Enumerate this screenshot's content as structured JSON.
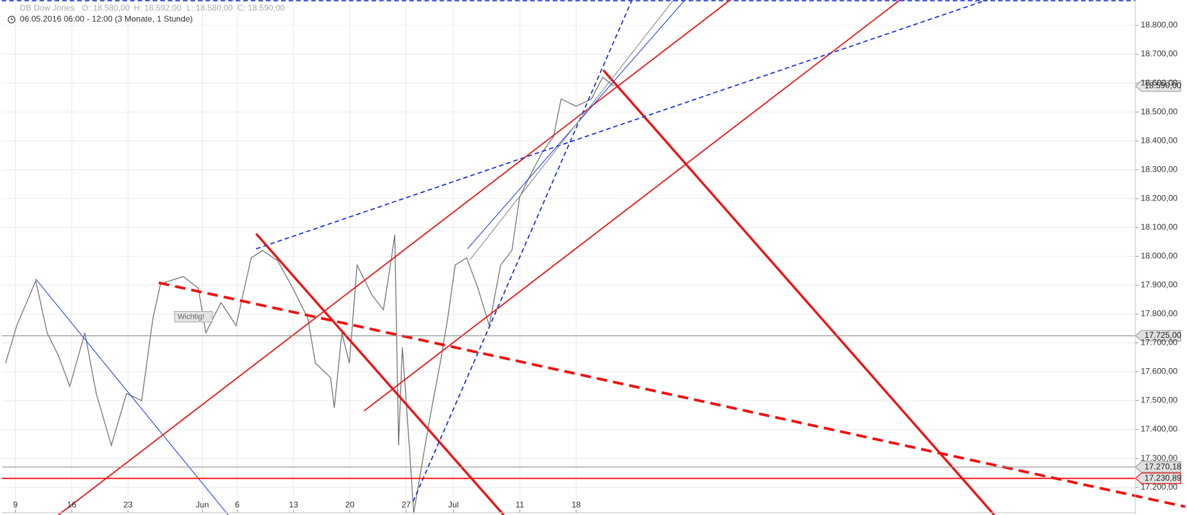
{
  "header": {
    "instrument": "DB Dow Jones",
    "open": "O: 18.580,00",
    "high": "H: 18.592,00",
    "low": "L: 18.580,00",
    "close": "C: 18.590,00",
    "period": "06.05.2016 06:00 - 12:00 (3 Monate, 1 Stunde)"
  },
  "chart_data": {
    "type": "line",
    "annotation": "Wichtig!",
    "x": [
      0.13,
      1.13,
      2.81,
      3.82,
      4.83,
      5.83,
      7.17,
      8.18,
      9.52,
      10.87,
      12.21,
      13.21,
      13.89,
      15.9,
      17.24,
      17.91,
      19.26,
      20.6,
      21.94,
      22.95,
      24.29,
      25.63,
      26.97,
      27.64,
      28.99,
      29.32,
      29.99,
      30.66,
      31.34,
      32.68,
      33.68,
      34.36,
      34.69,
      35.03,
      35.36,
      36.03,
      36.37,
      37.04,
      37.71,
      38.72,
      39.39,
      40.06,
      41.07,
      42.07,
      43.08,
      44.09,
      45.09,
      45.77,
      46.77,
      47.78,
      48.79,
      49.46,
      50.8,
      52.14,
      53.15,
      54.16
    ],
    "series": [
      {
        "name": "DB Dow Jones",
        "color": "#777777",
        "values": [
          17630,
          17761,
          17915,
          17735,
          17655,
          17550,
          17735,
          17525,
          17345,
          17525,
          17500,
          17785,
          17905,
          17930,
          17890,
          17735,
          17840,
          17760,
          17995,
          18020,
          17985,
          17890,
          17785,
          17630,
          17580,
          17475,
          17735,
          17630,
          17970,
          17865,
          17815,
          17985,
          18075,
          17345,
          17685,
          17315,
          17110,
          17265,
          17420,
          17630,
          17785,
          17970,
          17995,
          17890,
          17760,
          17970,
          18020,
          18205,
          18285,
          18360,
          18415,
          18545,
          18520,
          18545,
          18620,
          18590
        ]
      }
    ],
    "xlim": [
      -0.21,
      100.46
    ],
    "xticks": [
      {
        "value": 1,
        "label": "9"
      },
      {
        "value": 6,
        "label": "16"
      },
      {
        "value": 11,
        "label": "23"
      },
      {
        "value": 17.6,
        "label": "Jun"
      },
      {
        "value": 20.7,
        "label": "6"
      },
      {
        "value": 25.7,
        "label": "13"
      },
      {
        "value": 30.7,
        "label": "20"
      },
      {
        "value": 35.7,
        "label": "27"
      },
      {
        "value": 39.9,
        "label": "Jul"
      },
      {
        "value": 45.8,
        "label": "11"
      },
      {
        "value": 50.8,
        "label": "18"
      }
    ],
    "ylim": [
      17104,
      18888
    ],
    "yticks": [
      {
        "value": 17200,
        "label": "17.200,00"
      },
      {
        "value": 17300,
        "label": "17.300,00"
      },
      {
        "value": 17400,
        "label": "17.400,00"
      },
      {
        "value": 17500,
        "label": "17.500,00"
      },
      {
        "value": 17600,
        "label": "17.600,00"
      },
      {
        "value": 17700,
        "label": "17.700,00"
      },
      {
        "value": 17800,
        "label": "17.800,00"
      },
      {
        "value": 17900,
        "label": "17.900,00"
      },
      {
        "value": 18000,
        "label": "18.000,00"
      },
      {
        "value": 18100,
        "label": "18.100,00"
      },
      {
        "value": 18200,
        "label": "18.200,00"
      },
      {
        "value": 18300,
        "label": "18.300,00"
      },
      {
        "value": 18400,
        "label": "18.400,00"
      },
      {
        "value": 18500,
        "label": "18.500,00"
      },
      {
        "value": 18600,
        "label": "18.600,00"
      },
      {
        "value": 18700,
        "label": "18.700,00"
      },
      {
        "value": 18800,
        "label": "18.800,00"
      }
    ],
    "grid": true,
    "levels": [
      {
        "value": 18590,
        "label": "18.590,00",
        "color": "#dddddd"
      },
      {
        "value": 17725,
        "label": "17.725,00",
        "color": "#888888"
      },
      {
        "value": 17270.18,
        "label": "17.270,18",
        "color": "#888888"
      },
      {
        "value": 17230.89,
        "label": "17.230,89",
        "color": "#ff0000"
      }
    ]
  }
}
